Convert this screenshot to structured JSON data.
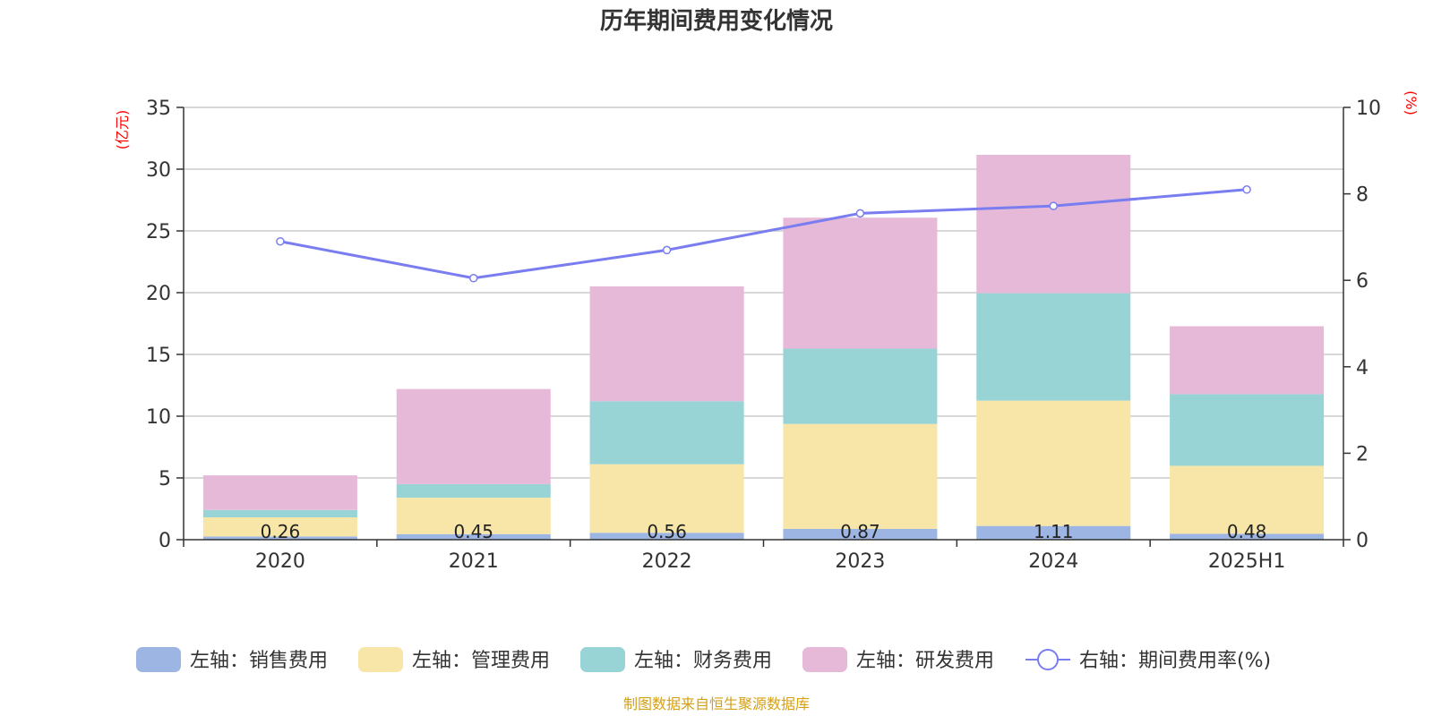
{
  "title": "历年期间费用变化情况",
  "source": "制图数据来自恒生聚源数据库",
  "colors": {
    "sales": "#9db5e3",
    "admin": "#f8e6a8",
    "finance": "#98d4d6",
    "rd": "#e7b9d9",
    "rate": "#7a7def",
    "unit_text": "#ff0000",
    "source_text": "#d4a017",
    "grid": "#cccccc",
    "axis": "#333333"
  },
  "chart_data": {
    "type": "bar",
    "stacked": true,
    "title": "历年期间费用变化情况",
    "categories": [
      "2020",
      "2021",
      "2022",
      "2023",
      "2024",
      "2025H1"
    ],
    "left_axis": {
      "unit": "(亿元)",
      "ylim": [
        0,
        35
      ],
      "ticks": [
        "0",
        "5",
        "10",
        "15",
        "20",
        "25",
        "30",
        "35"
      ]
    },
    "right_axis": {
      "unit": "(%)",
      "ylim": [
        0,
        10
      ],
      "ticks": [
        "0",
        "2",
        "4",
        "6",
        "8",
        "10"
      ]
    },
    "series": [
      {
        "name": "左轴：销售费用",
        "axis": "left",
        "type": "bar",
        "values": [
          0.26,
          0.45,
          0.56,
          0.87,
          1.11,
          0.48
        ],
        "labels": [
          "0.26",
          "0.45",
          "0.56",
          "0.87",
          "1.11",
          "0.48"
        ]
      },
      {
        "name": "左轴：管理费用",
        "axis": "left",
        "type": "bar",
        "values": [
          1.55,
          2.95,
          5.55,
          8.5,
          10.15,
          5.5
        ]
      },
      {
        "name": "左轴：财务费用",
        "axis": "left",
        "type": "bar",
        "values": [
          0.6,
          1.1,
          5.1,
          6.1,
          8.7,
          5.8
        ]
      },
      {
        "name": "左轴：研发费用",
        "axis": "left",
        "type": "bar",
        "values": [
          2.8,
          7.7,
          9.3,
          10.6,
          11.2,
          5.5
        ]
      },
      {
        "name": "右轴：期间费用率(%)",
        "axis": "right",
        "type": "line",
        "values": [
          6.9,
          6.05,
          6.7,
          7.55,
          7.72,
          8.1
        ]
      }
    ],
    "grid": true,
    "legend_position": "bottom"
  }
}
